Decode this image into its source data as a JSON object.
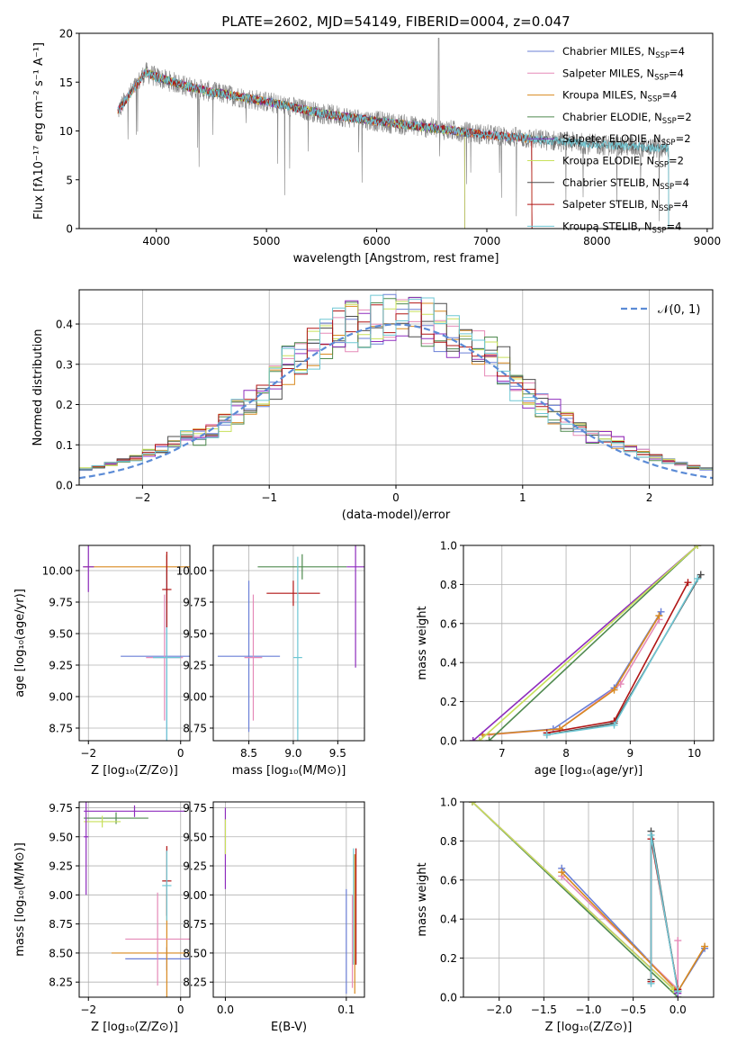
{
  "colors": [
    "#6a7fd6",
    "#e58ab8",
    "#d8891f",
    "#4f8a4f",
    "#8e2cbd",
    "#c8e05a",
    "#4d4d4d",
    "#b01515",
    "#6ec7d4"
  ],
  "chart_data": [
    {
      "id": "spectrum",
      "type": "line",
      "title": "PLATE=2602, MJD=54149, FIBERID=0004, z=0.047",
      "xlabel": "wavelength [Angstrom, rest frame]",
      "ylabel": "Flux [fλ10⁻¹⁷ erg cm⁻² s⁻¹ A⁻¹]",
      "xlim": [
        3300,
        9050
      ],
      "ylim": [
        0,
        20
      ],
      "xticks": [
        4000,
        5000,
        6000,
        7000,
        8000,
        9000
      ],
      "yticks": [
        0,
        5,
        10,
        15,
        20
      ],
      "grid": false,
      "legend_position": "top-right",
      "data_series": {
        "name": "data",
        "color": "#808080",
        "x_range": [
          3650,
          8650
        ]
      },
      "continuum_points": {
        "x": [
          3650,
          3900,
          4000,
          4300,
          4500,
          5000,
          5500,
          6000,
          6500,
          7000,
          7400,
          8000,
          8650
        ],
        "y": [
          12.0,
          16.0,
          15.5,
          14.5,
          14.0,
          13.0,
          11.8,
          11.0,
          10.3,
          9.6,
          9.2,
          8.6,
          8.2
        ]
      },
      "series": [
        {
          "label": "Chabrier MILES, N",
          "sub": "SSP",
          "suffix": "=4",
          "x_range": [
            3650,
            7410
          ]
        },
        {
          "label": "Salpeter MILES, N",
          "sub": "SSP",
          "suffix": "=4",
          "x_range": [
            3650,
            7410
          ]
        },
        {
          "label": "Kroupa MILES, N",
          "sub": "SSP",
          "suffix": "=4",
          "x_range": [
            3650,
            7410
          ]
        },
        {
          "label": "Chabrier ELODIE, N",
          "sub": "SSP",
          "suffix": "=2",
          "x_range": [
            3900,
            6800
          ]
        },
        {
          "label": "Salpeter ELODIE, N",
          "sub": "SSP",
          "suffix": "=2",
          "x_range": [
            3900,
            6800
          ]
        },
        {
          "label": "Kroupa ELODIE, N",
          "sub": "SSP",
          "suffix": "=2",
          "x_range": [
            3900,
            6800
          ]
        },
        {
          "label": "Chabrier STELIB, N",
          "sub": "SSP",
          "suffix": "=4",
          "x_range": [
            3650,
            8650
          ]
        },
        {
          "label": "Salpeter STELIB, N",
          "sub": "SSP",
          "suffix": "=4",
          "x_range": [
            3650,
            7410
          ]
        },
        {
          "label": "Kroupa STELIB, N",
          "sub": "SSP",
          "suffix": "=4",
          "x_range": [
            3650,
            8650
          ]
        }
      ]
    },
    {
      "id": "residuals",
      "type": "line",
      "xlabel": "(data-model)/error",
      "ylabel": "Normed distribution",
      "xlim": [
        -2.5,
        2.5
      ],
      "ylim": [
        0,
        0.485
      ],
      "xticks": [
        -2,
        -1,
        0,
        1,
        2
      ],
      "yticks": [
        0.0,
        0.1,
        0.2,
        0.3,
        0.4
      ],
      "grid": true,
      "legend": "𝒩(0, 1)",
      "legend_position": "top-right",
      "bin_width": 0.1,
      "gaussian": {
        "mean": 0,
        "sigma": 1,
        "color": "#5b8bd6"
      }
    },
    {
      "id": "age-vs-Z",
      "type": "scatter",
      "xlabel": "Z [log₁₀(Z/Z⊙)]",
      "ylabel": "age  [log₁₀(age/yr)]",
      "xlim": [
        -2.2,
        0.2
      ],
      "ylim": [
        8.65,
        10.2
      ],
      "xticks": [
        -2,
        0
      ],
      "yticks": [
        8.75,
        9.0,
        9.25,
        9.5,
        9.75,
        10.0
      ],
      "grid": true,
      "points": [
        {
          "x": -0.3,
          "y": 9.32,
          "xerr": 1.0,
          "yerr": 0.8,
          "c": 0
        },
        {
          "x": -0.3,
          "y": 10.03,
          "xerr": 1.8,
          "yerr": 0.1,
          "c": 2
        },
        {
          "x": -0.35,
          "y": 9.31,
          "xerr": 0.4,
          "yerr": 0.5,
          "c": 1
        },
        {
          "x": -2.0,
          "y": 10.03,
          "xerr": 0.12,
          "yerr": 0.2,
          "c": 4
        },
        {
          "x": -0.3,
          "y": 9.31,
          "xerr": 0.3,
          "yerr": 0.7,
          "c": 8
        },
        {
          "x": -0.3,
          "y": 9.85,
          "xerr": 0.1,
          "yerr": 0.3,
          "c": 7
        }
      ]
    },
    {
      "id": "age-vs-mass",
      "type": "scatter",
      "xlabel": "mass [log₁₀(M/M⊙)]",
      "ylabel": "",
      "xlim": [
        8.1,
        9.8
      ],
      "ylim": [
        8.65,
        10.2
      ],
      "xticks": [
        8.5,
        9.0,
        9.5
      ],
      "yticks": [
        8.75,
        9.0,
        9.25,
        9.5,
        9.75,
        10.0
      ],
      "grid": true,
      "points": [
        {
          "x": 8.5,
          "y": 9.32,
          "xerr": 0.35,
          "yerr": 0.6,
          "c": 0
        },
        {
          "x": 8.55,
          "y": 9.31,
          "xerr": 0.1,
          "yerr": 0.5,
          "c": 1
        },
        {
          "x": 9.1,
          "y": 10.03,
          "xerr": 0.5,
          "yerr": 0.1,
          "c": 3
        },
        {
          "x": 9.7,
          "y": 10.03,
          "xerr": 0.1,
          "yerr": 0.8,
          "c": 4
        },
        {
          "x": 9.0,
          "y": 9.82,
          "xerr": 0.3,
          "yerr": 0.1,
          "c": 7
        },
        {
          "x": 9.05,
          "y": 9.31,
          "xerr": 0.05,
          "yerr": 0.8,
          "c": 8
        }
      ]
    },
    {
      "id": "weight-vs-age",
      "type": "line",
      "xlabel": "age  [log₁₀(age/yr)]",
      "ylabel": "mass weight",
      "xlim": [
        6.4,
        10.3
      ],
      "ylim": [
        0,
        1
      ],
      "xticks": [
        7,
        8,
        9,
        10
      ],
      "yticks": [
        0.0,
        0.2,
        0.4,
        0.6,
        0.8,
        1.0
      ],
      "grid": true,
      "series": [
        {
          "c": 0,
          "x": [
            6.7,
            7.8,
            8.75,
            9.48
          ],
          "y": [
            0.03,
            0.06,
            0.27,
            0.66
          ]
        },
        {
          "c": 1,
          "x": [
            6.8,
            7.9,
            8.85,
            9.45
          ],
          "y": [
            0.03,
            0.06,
            0.29,
            0.62
          ]
        },
        {
          "c": 2,
          "x": [
            6.7,
            7.9,
            8.75,
            9.45
          ],
          "y": [
            0.03,
            0.06,
            0.26,
            0.64
          ]
        },
        {
          "c": 3,
          "x": [
            6.8,
            10.05
          ],
          "y": [
            0.0,
            1.0
          ]
        },
        {
          "c": 4,
          "x": [
            6.55,
            10.05
          ],
          "y": [
            0.0,
            1.0
          ]
        },
        {
          "c": 5,
          "x": [
            6.65,
            10.05
          ],
          "y": [
            0.0,
            1.0
          ]
        },
        {
          "c": 6,
          "x": [
            7.7,
            8.75,
            10.1
          ],
          "y": [
            0.03,
            0.09,
            0.85
          ]
        },
        {
          "c": 7,
          "x": [
            7.7,
            8.75,
            9.9
          ],
          "y": [
            0.04,
            0.1,
            0.81
          ]
        },
        {
          "c": 8,
          "x": [
            7.7,
            8.75,
            10.05
          ],
          "y": [
            0.03,
            0.08,
            0.83
          ]
        }
      ]
    },
    {
      "id": "mass-vs-Z",
      "type": "scatter",
      "xlabel": "Z [log₁₀(Z/Z⊙)]",
      "ylabel": "mass [log₁₀(M/M⊙)]",
      "xlim": [
        -2.2,
        0.2
      ],
      "ylim": [
        8.12,
        9.8
      ],
      "xticks": [
        -2,
        0
      ],
      "yticks": [
        8.25,
        8.5,
        8.75,
        9.0,
        9.25,
        9.5,
        9.75
      ],
      "grid": true,
      "points": [
        {
          "x": -0.3,
          "y": 8.45,
          "xerr": 0.9,
          "yerr": 0.1,
          "c": 0
        },
        {
          "x": -0.3,
          "y": 8.5,
          "xerr": 1.2,
          "yerr": 0.5,
          "c": 2
        },
        {
          "x": -0.5,
          "y": 8.62,
          "xerr": 0.7,
          "yerr": 0.4,
          "c": 1
        },
        {
          "x": -1.0,
          "y": 9.72,
          "xerr": 1.1,
          "yerr": 0.05,
          "c": 4
        },
        {
          "x": -1.4,
          "y": 9.66,
          "xerr": 0.7,
          "yerr": 0.05,
          "c": 3
        },
        {
          "x": -1.7,
          "y": 9.63,
          "xerr": 0.4,
          "yerr": 0.05,
          "c": 5
        },
        {
          "x": -2.05,
          "y": 9.5,
          "xerr": 0.05,
          "yerr": 0.5,
          "c": 4
        },
        {
          "x": -0.3,
          "y": 9.12,
          "xerr": 0.1,
          "yerr": 0.3,
          "c": 7
        },
        {
          "x": -0.3,
          "y": 9.08,
          "xerr": 0.1,
          "yerr": 0.3,
          "c": 8
        }
      ]
    },
    {
      "id": "mass-vs-EBV",
      "type": "scatter",
      "xlabel": "E(B-V)",
      "ylabel": "",
      "xlim": [
        -0.01,
        0.115
      ],
      "ylim": [
        8.12,
        9.8
      ],
      "xticks": [
        0.0,
        0.1
      ],
      "yticks": [
        8.25,
        8.5,
        8.75,
        9.0,
        9.25,
        9.5,
        9.75
      ],
      "grid": true,
      "points": [
        {
          "x": 0.0,
          "y": 9.4,
          "xerr": 0,
          "yerr": 0.35,
          "c": 4
        },
        {
          "x": 0.0,
          "y": 9.5,
          "xerr": 0,
          "yerr": 0.15,
          "c": 5
        },
        {
          "x": 0.1,
          "y": 8.6,
          "xerr": 0,
          "yerr": 0.45,
          "c": 0
        },
        {
          "x": 0.105,
          "y": 8.6,
          "xerr": 0,
          "yerr": 0.4,
          "c": 1
        },
        {
          "x": 0.107,
          "y": 8.75,
          "xerr": 0,
          "yerr": 0.6,
          "c": 2
        },
        {
          "x": 0.108,
          "y": 8.9,
          "xerr": 0,
          "yerr": 0.5,
          "c": 7
        },
        {
          "x": 0.106,
          "y": 8.9,
          "xerr": 0,
          "yerr": 0.5,
          "c": 8
        }
      ]
    },
    {
      "id": "weight-vs-Z",
      "type": "line",
      "xlabel": "Z [log₁₀(Z/Z⊙)]",
      "ylabel": "mass weight",
      "xlim": [
        -2.4,
        0.4
      ],
      "ylim": [
        0,
        1
      ],
      "xticks": [
        -2.0,
        -1.5,
        -1.0,
        -0.5,
        0.0
      ],
      "yticks": [
        0.0,
        0.2,
        0.4,
        0.6,
        0.8,
        1.0
      ],
      "grid": true,
      "series": [
        {
          "c": 0,
          "x": [
            -1.3,
            0.0,
            0.3
          ],
          "y": [
            0.66,
            0.03,
            0.25
          ]
        },
        {
          "c": 1,
          "x": [
            -1.3,
            0.0,
            0.0
          ],
          "y": [
            0.62,
            0.04,
            0.29
          ]
        },
        {
          "c": 2,
          "x": [
            -1.3,
            0.0,
            0.3
          ],
          "y": [
            0.64,
            0.03,
            0.26
          ]
        },
        {
          "c": 3,
          "x": [
            -2.3,
            0.0
          ],
          "y": [
            1.0,
            0.0
          ]
        },
        {
          "c": 4,
          "x": [
            -2.3,
            0.0
          ],
          "y": [
            1.0,
            0.02
          ]
        },
        {
          "c": 5,
          "x": [
            -2.3,
            -0.05
          ],
          "y": [
            1.0,
            0.04
          ]
        },
        {
          "c": 6,
          "x": [
            -0.3,
            -0.3,
            0.0
          ],
          "y": [
            0.09,
            0.85,
            0.03
          ]
        },
        {
          "c": 7,
          "x": [
            -0.3,
            -0.3,
            0.0
          ],
          "y": [
            0.08,
            0.81,
            0.04
          ]
        },
        {
          "c": 8,
          "x": [
            -0.3,
            -0.3,
            0.0
          ],
          "y": [
            0.07,
            0.83,
            0.03
          ]
        }
      ]
    }
  ]
}
